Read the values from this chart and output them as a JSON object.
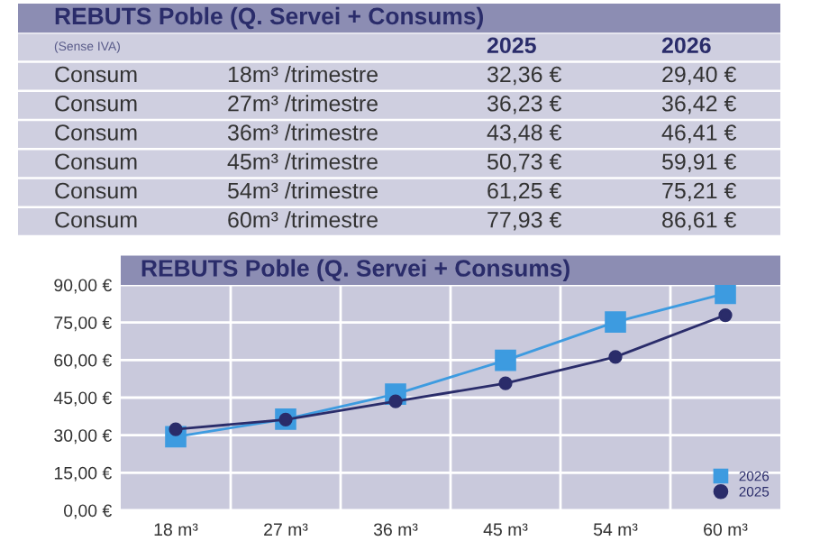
{
  "chart_data": [
    {
      "type": "other",
      "title": "REBUTS Poble (Q. Servei + Consums)",
      "subtitle": "(Sense IVA)",
      "annotations": [
        "Consum",
        "Consum",
        "Consum",
        "Consum",
        "Consum",
        "Consum"
      ],
      "categories": [
        "18m³ /trimestre",
        "27m³ /trimestre",
        "36m³ /trimestre",
        "45m³ /trimestre",
        "54m³ /trimestre",
        "60m³ /trimestre"
      ],
      "series": [
        {
          "name": "2025",
          "values": [
            32.36,
            36.23,
            43.48,
            50.73,
            61.25,
            77.93
          ],
          "value_labels": [
            "32,36 €",
            "36,23 €",
            "43,48 €",
            "50,73 €",
            "61,25 €",
            "77,93 €"
          ]
        },
        {
          "name": "2026",
          "values": [
            29.4,
            36.42,
            46.41,
            59.91,
            75.21,
            86.61
          ],
          "value_labels": [
            "29,40 €",
            "36,42 €",
            "46,41 €",
            "59,91 €",
            "75,21 €",
            "86,61 €"
          ]
        }
      ]
    },
    {
      "type": "line",
      "title": "REBUTS Poble (Q. Servei + Consums)",
      "categories": [
        "18 m³",
        "27 m³",
        "36 m³",
        "45 m³",
        "54 m³",
        "60 m³"
      ],
      "series": [
        {
          "name": "2026",
          "color": "#3d9be0",
          "marker": "square",
          "values": [
            29.4,
            36.42,
            46.41,
            59.91,
            75.21,
            86.61
          ]
        },
        {
          "name": "2025",
          "color": "#2a2c6a",
          "marker": "circle",
          "values": [
            32.36,
            36.23,
            43.48,
            50.73,
            61.25,
            77.93
          ]
        }
      ],
      "ylim": [
        0,
        90
      ],
      "yticks": [
        {
          "value": 0,
          "label": "0,00 €"
        },
        {
          "value": 15,
          "label": "15,00 €"
        },
        {
          "value": 30,
          "label": "30,00 €"
        },
        {
          "value": 45,
          "label": "45,00 €"
        },
        {
          "value": 60,
          "label": "60,00 €"
        },
        {
          "value": 75,
          "label": "75,00 €"
        },
        {
          "value": 90,
          "label": "90,00 €"
        }
      ],
      "grid": true,
      "legend": "bottom right",
      "line_style": "solid"
    }
  ]
}
